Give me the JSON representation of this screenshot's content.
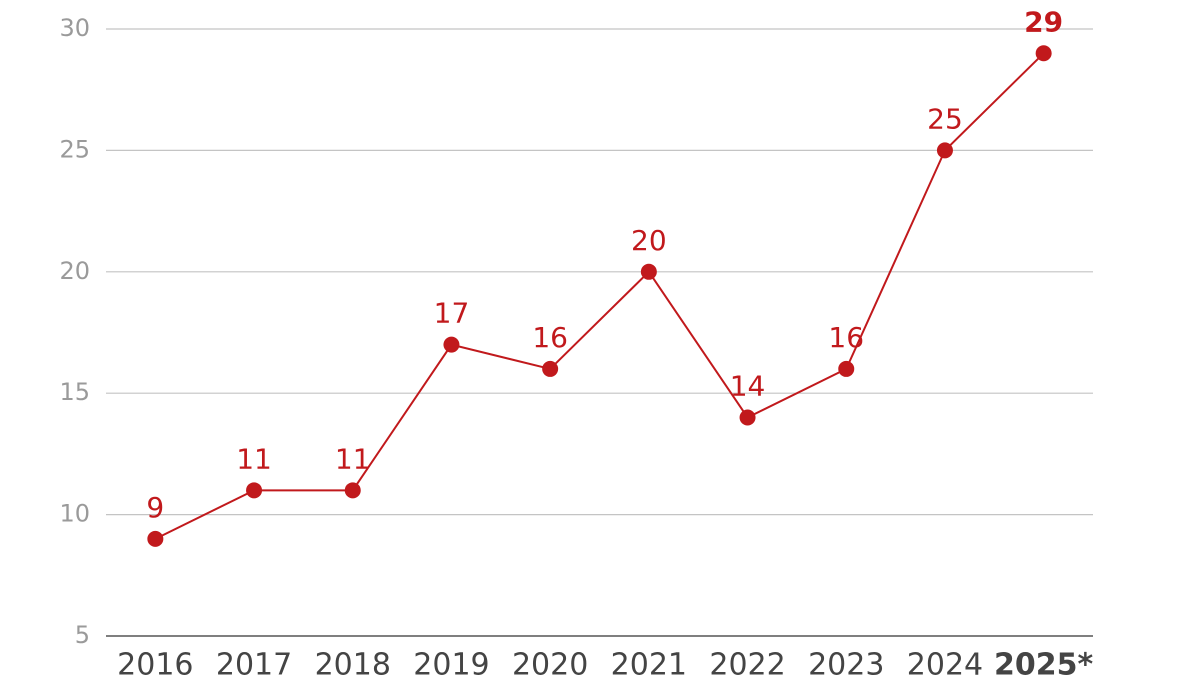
{
  "chart_data": {
    "type": "line",
    "categories": [
      "2016",
      "2017",
      "2018",
      "2019",
      "2020",
      "2021",
      "2022",
      "2023",
      "2024",
      "2025*"
    ],
    "values": [
      9,
      11,
      11,
      17,
      16,
      20,
      14,
      16,
      25,
      29
    ],
    "color": "#c1191c",
    "ylim": [
      5,
      30
    ],
    "yticks": [
      5,
      10,
      15,
      20,
      25,
      30
    ],
    "grid": true
  }
}
